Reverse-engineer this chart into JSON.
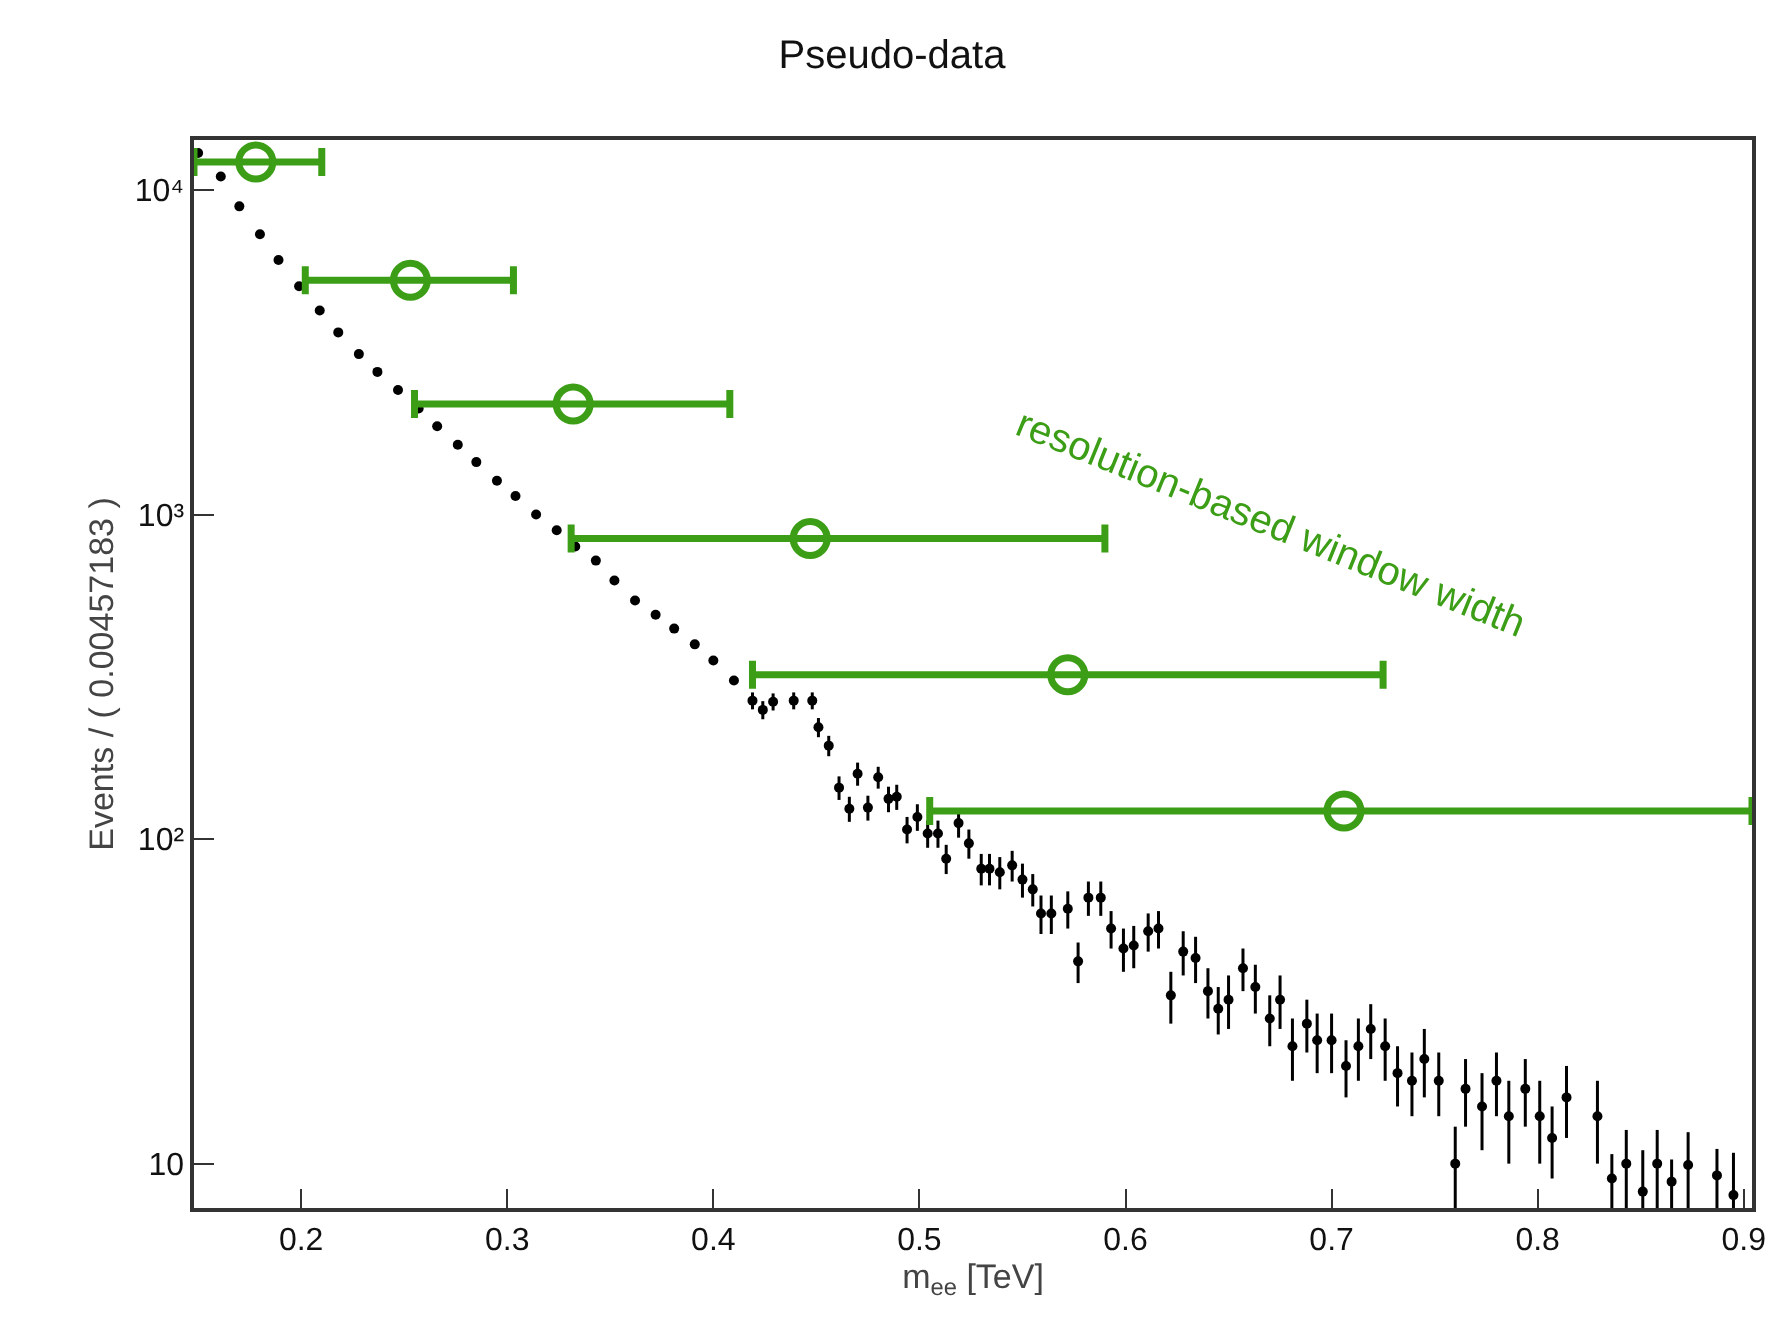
{
  "chart_data": {
    "type": "scatter",
    "title": "Pseudo-data",
    "xlabel": "m$_{ee}$ [TeV]",
    "ylabel": "Events / ( 0.00457183 )",
    "log": "y",
    "grid": false,
    "legend": false,
    "marker": "circle",
    "xlim": [
      0.148,
      0.904
    ],
    "xticks": [
      0.2,
      0.3,
      0.4,
      0.5,
      0.6,
      0.7,
      0.8,
      0.9
    ],
    "ylim": [
      7.3,
      14250
    ],
    "yticks": [
      10,
      {
        "value": 100,
        "label": "10²"
      },
      {
        "value": 1000,
        "label": "10³"
      },
      {
        "value": 10000,
        "label": "10⁴"
      }
    ],
    "annotations": [
      "resolution-based window width"
    ],
    "series": [
      {
        "color": "#000000",
        "x": [
          0.15,
          0.161,
          0.17,
          0.18,
          0.189,
          0.199,
          0.209,
          0.218,
          0.228,
          0.237,
          0.247,
          0.257,
          0.266,
          0.276,
          0.285,
          0.295,
          0.304,
          0.314,
          0.324,
          0.333,
          0.343,
          0.352,
          0.362,
          0.372,
          0.381,
          0.391,
          0.4,
          0.41,
          0.419,
          0.424,
          0.429,
          0.439,
          0.448,
          0.451,
          0.456,
          0.461,
          0.466,
          0.47,
          0.475,
          0.48,
          0.485,
          0.489,
          0.494,
          0.499,
          0.504,
          0.509,
          0.513,
          0.519,
          0.524,
          0.53,
          0.534,
          0.539,
          0.545,
          0.55,
          0.555,
          0.559,
          0.564,
          0.572,
          0.577,
          0.582,
          0.588,
          0.593,
          0.599,
          0.604,
          0.611,
          0.616,
          0.622,
          0.628,
          0.634,
          0.64,
          0.645,
          0.65,
          0.657,
          0.663,
          0.67,
          0.675,
          0.681,
          0.688,
          0.693,
          0.7,
          0.707,
          0.713,
          0.719,
          0.726,
          0.732,
          0.739,
          0.745,
          0.752,
          0.76,
          0.765,
          0.773,
          0.78,
          0.786,
          0.794,
          0.801,
          0.807,
          0.814,
          0.829,
          0.836,
          0.843,
          0.851,
          0.858,
          0.865,
          0.873,
          0.887,
          0.895
        ],
        "values": [
          13000,
          11000,
          8900,
          7300,
          6080,
          5050,
          4250,
          3640,
          3120,
          2750,
          2420,
          2120,
          1870,
          1640,
          1450,
          1270,
          1140,
          1000,
          894,
          797,
          721,
          626,
          543,
          491,
          445,
          398,
          355,
          308,
          267,
          250,
          265,
          267,
          267,
          221,
          194,
          144,
          124,
          159,
          125,
          155,
          133,
          135,
          107,
          117,
          104,
          104,
          87,
          112,
          97,
          81,
          81,
          79,
          83,
          75,
          70,
          59,
          59,
          61,
          42,
          66,
          66,
          53,
          46,
          47,
          52,
          53,
          33,
          45,
          43,
          34,
          30,
          32,
          40,
          35,
          28,
          32,
          23,
          27,
          24,
          24,
          20,
          23,
          26,
          23,
          19,
          18,
          21,
          18,
          10,
          17,
          15,
          18,
          14,
          17,
          14,
          12,
          16,
          14,
          9,
          10,
          8.2,
          10,
          8.8,
          9.9,
          9.2,
          8.0
        ],
        "errors": [
          null,
          null,
          null,
          null,
          null,
          null,
          null,
          null,
          null,
          null,
          null,
          null,
          null,
          null,
          null,
          null,
          null,
          null,
          null,
          null,
          null,
          null,
          null,
          null,
          null,
          null,
          null,
          null,
          16,
          16,
          16,
          16,
          16,
          15,
          14,
          12,
          11,
          13,
          11,
          12,
          12,
          12,
          10,
          11,
          10,
          10,
          9,
          11,
          10,
          9,
          9,
          9,
          9,
          9,
          8,
          8,
          8,
          8,
          6,
          8,
          8,
          7,
          7,
          7,
          7,
          7,
          6,
          7,
          7,
          6,
          5,
          6,
          6,
          6,
          5,
          6,
          5,
          5,
          5,
          5,
          4,
          5,
          5,
          5,
          4,
          4,
          5,
          4,
          3,
          4,
          4,
          4,
          4,
          4,
          4,
          3,
          4,
          4,
          1.7,
          2.7,
          [
            7.3,
            11
          ],
          2.7,
          1.5,
          2.6,
          1.9,
          [
            7.3,
            10.8
          ]
        ]
      },
      {
        "color": "#3c9e16",
        "marker": "circle",
        "x": [
          0.178,
          0.253,
          0.332,
          0.447,
          0.572,
          0.706
        ],
        "values": [
          12200,
          5270,
          2190,
          843,
          321,
          122
        ],
        "xerrors": [
          [
            0.148,
            0.21
          ],
          [
            0.202,
            0.303
          ],
          [
            0.255,
            0.408
          ],
          [
            0.331,
            0.59
          ],
          [
            0.419,
            0.725
          ],
          [
            0.505,
            0.904
          ]
        ]
      }
    ]
  }
}
